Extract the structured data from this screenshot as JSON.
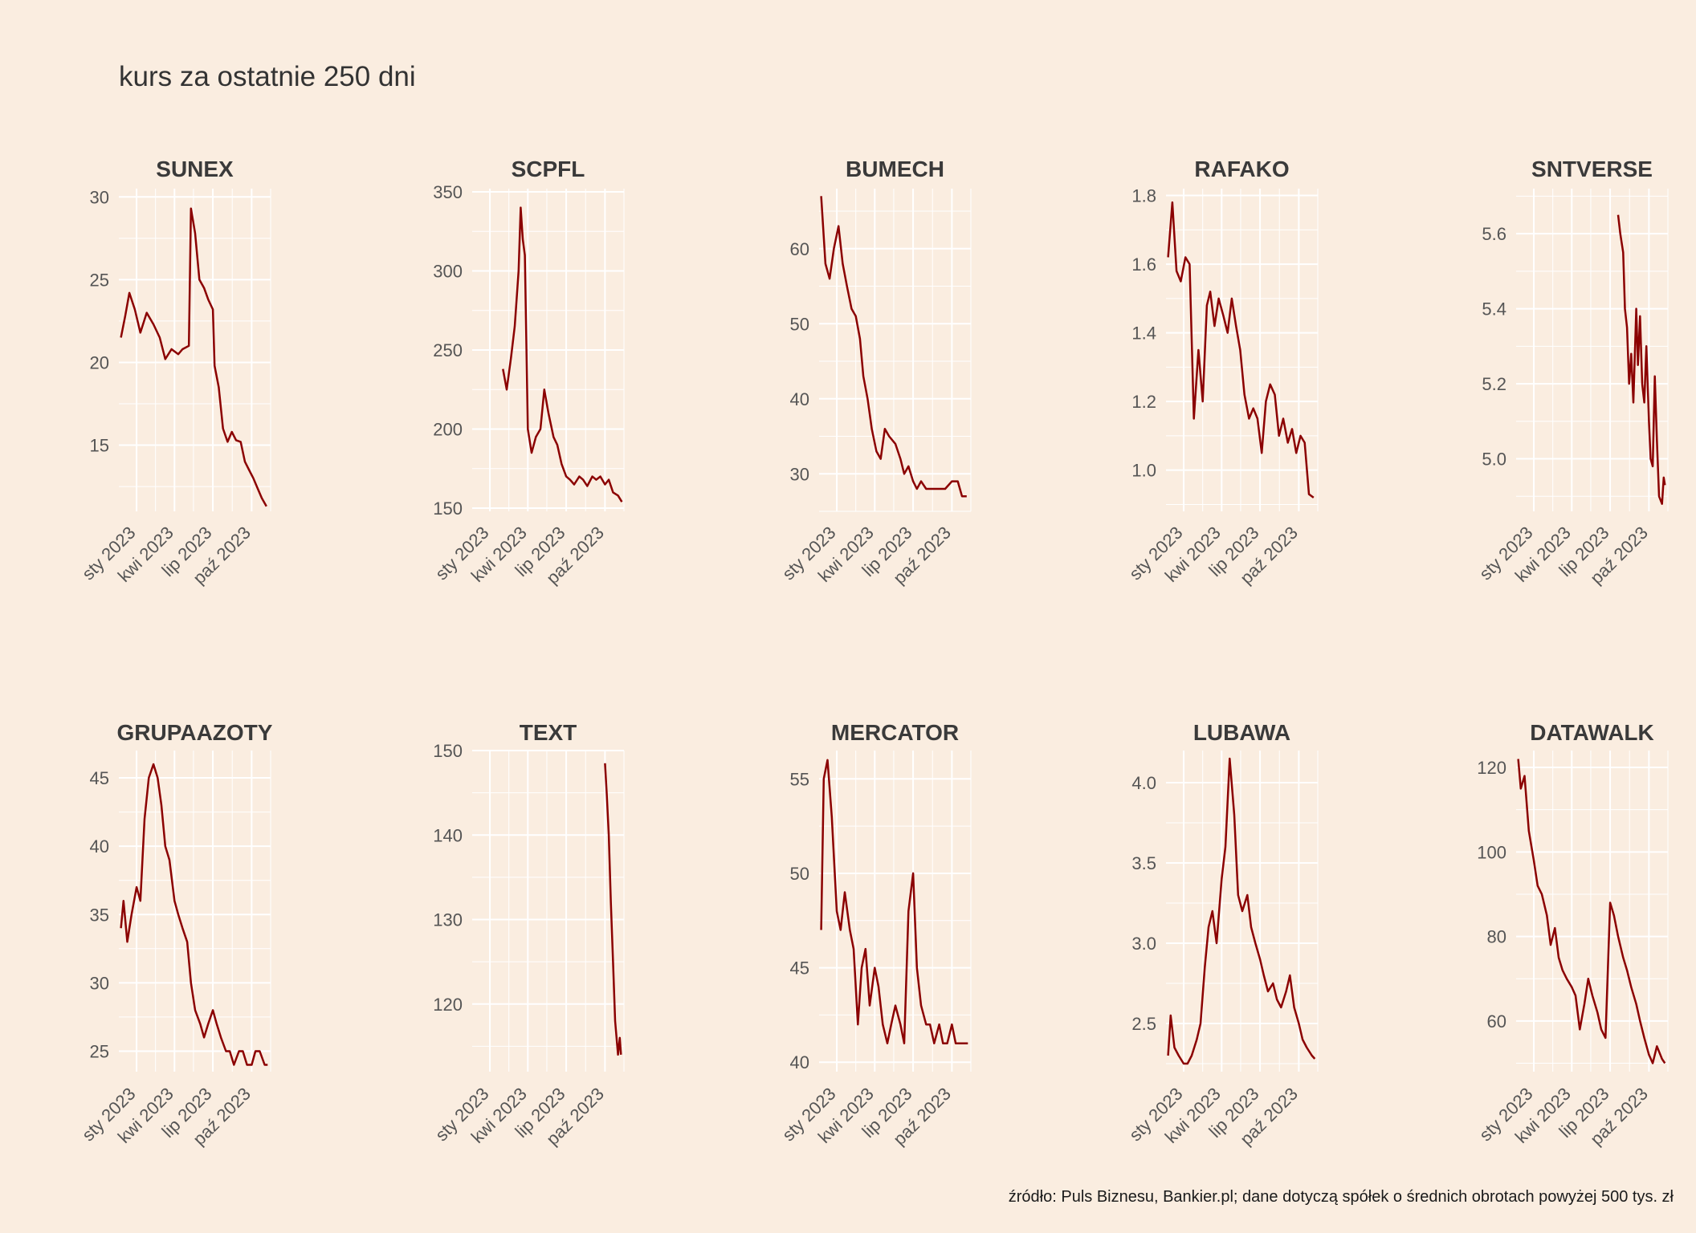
{
  "title": "kurs za ostatnie 250 dni",
  "source": "źródło: Puls Biznesu, Bankier.pl; dane dotyczą spółek o średnich obrotach powyżej 500 tys. zł",
  "colors": {
    "background": "#faede0",
    "grid": "#ffffff",
    "line": "#8b0000",
    "text": "#3a3a3a"
  },
  "chart_data": [
    {
      "type": "line",
      "title": "SUNEX",
      "xlabels": [
        "sty 2023",
        "kwi 2023",
        "lip 2023",
        "paź 2023"
      ],
      "ylim": [
        11,
        30.5
      ],
      "yticks": [
        15,
        20,
        25,
        30
      ],
      "x": [
        "2022-11-25",
        "2022-12-05",
        "2022-12-15",
        "2022-12-28",
        "2023-01-10",
        "2023-01-25",
        "2023-02-10",
        "2023-02-25",
        "2023-03-10",
        "2023-03-25",
        "2023-04-10",
        "2023-04-20",
        "2023-05-05",
        "2023-05-10",
        "2023-05-20",
        "2023-05-30",
        "2023-06-10",
        "2023-06-20",
        "2023-07-01",
        "2023-07-05",
        "2023-07-15",
        "2023-07-25",
        "2023-08-05",
        "2023-08-15",
        "2023-08-25",
        "2023-09-05",
        "2023-09-15",
        "2023-09-25",
        "2023-10-05",
        "2023-10-15",
        "2023-10-25",
        "2023-11-05"
      ],
      "values": [
        21.5,
        22.8,
        24.2,
        23.2,
        21.8,
        23.0,
        22.3,
        21.5,
        20.2,
        20.8,
        20.5,
        20.8,
        21.0,
        29.3,
        27.8,
        25.0,
        24.5,
        23.8,
        23.2,
        19.8,
        18.5,
        16.0,
        15.2,
        15.8,
        15.3,
        15.2,
        14.0,
        13.5,
        13.0,
        12.4,
        11.8,
        11.3
      ]
    },
    {
      "type": "line",
      "title": "SCPFL",
      "xlabels": [
        "sty 2023",
        "kwi 2023",
        "lip 2023",
        "paź 2023"
      ],
      "ylim": [
        148,
        352
      ],
      "yticks": [
        150,
        200,
        250,
        300,
        350
      ],
      "x": [
        "2023-02-01",
        "2023-02-10",
        "2023-02-20",
        "2023-03-01",
        "2023-03-10",
        "2023-03-15",
        "2023-03-20",
        "2023-03-25",
        "2023-04-01",
        "2023-04-10",
        "2023-04-20",
        "2023-05-01",
        "2023-05-10",
        "2023-05-20",
        "2023-06-01",
        "2023-06-10",
        "2023-06-20",
        "2023-07-01",
        "2023-07-10",
        "2023-07-20",
        "2023-08-01",
        "2023-08-10",
        "2023-08-20",
        "2023-09-01",
        "2023-09-10",
        "2023-09-20",
        "2023-10-01",
        "2023-10-10",
        "2023-10-20",
        "2023-11-01",
        "2023-11-10"
      ],
      "values": [
        238,
        225,
        245,
        265,
        300,
        340,
        320,
        310,
        200,
        185,
        195,
        200,
        225,
        210,
        195,
        190,
        178,
        170,
        168,
        165,
        170,
        168,
        164,
        170,
        168,
        170,
        165,
        168,
        160,
        158,
        154
      ]
    },
    {
      "type": "line",
      "title": "BUMECH",
      "xlabels": [
        "sty 2023",
        "kwi 2023",
        "lip 2023",
        "paź 2023"
      ],
      "ylim": [
        25,
        68
      ],
      "yticks": [
        30,
        40,
        50,
        60
      ],
      "x": [
        "2022-11-25",
        "2022-12-05",
        "2022-12-15",
        "2022-12-25",
        "2023-01-05",
        "2023-01-15",
        "2023-01-25",
        "2023-02-05",
        "2023-02-15",
        "2023-02-25",
        "2023-03-05",
        "2023-03-15",
        "2023-03-25",
        "2023-04-05",
        "2023-04-15",
        "2023-04-25",
        "2023-05-05",
        "2023-05-20",
        "2023-06-01",
        "2023-06-10",
        "2023-06-20",
        "2023-07-01",
        "2023-07-10",
        "2023-07-20",
        "2023-08-01",
        "2023-08-15",
        "2023-09-01",
        "2023-09-15",
        "2023-10-01",
        "2023-10-15",
        "2023-10-25",
        "2023-11-05"
      ],
      "values": [
        67,
        58,
        56,
        60,
        63,
        58,
        55,
        52,
        51,
        48,
        43,
        40,
        36,
        33,
        32,
        36,
        35,
        34,
        32,
        30,
        31,
        29,
        28,
        29,
        28,
        28,
        28,
        28,
        29,
        29,
        27,
        27
      ]
    },
    {
      "type": "line",
      "title": "RAFAKO",
      "xlabels": [
        "sty 2023",
        "kwi 2023",
        "lip 2023",
        "paź 2023"
      ],
      "ylim": [
        0.88,
        1.82
      ],
      "yticks": [
        1.0,
        1.2,
        1.4,
        1.6,
        1.8
      ],
      "x": [
        "2022-11-25",
        "2022-12-05",
        "2022-12-15",
        "2022-12-25",
        "2023-01-05",
        "2023-01-15",
        "2023-01-25",
        "2023-02-05",
        "2023-02-15",
        "2023-02-25",
        "2023-03-05",
        "2023-03-15",
        "2023-03-25",
        "2023-04-05",
        "2023-04-15",
        "2023-04-25",
        "2023-05-05",
        "2023-05-15",
        "2023-05-25",
        "2023-06-05",
        "2023-06-15",
        "2023-06-25",
        "2023-07-05",
        "2023-07-15",
        "2023-07-25",
        "2023-08-05",
        "2023-08-15",
        "2023-08-25",
        "2023-09-05",
        "2023-09-15",
        "2023-09-25",
        "2023-10-05",
        "2023-10-15",
        "2023-10-25",
        "2023-11-05"
      ],
      "values": [
        1.62,
        1.78,
        1.58,
        1.55,
        1.62,
        1.6,
        1.15,
        1.35,
        1.2,
        1.48,
        1.52,
        1.42,
        1.5,
        1.45,
        1.4,
        1.5,
        1.42,
        1.35,
        1.22,
        1.15,
        1.18,
        1.15,
        1.05,
        1.2,
        1.25,
        1.22,
        1.1,
        1.15,
        1.08,
        1.12,
        1.05,
        1.1,
        1.08,
        0.93,
        0.92
      ]
    },
    {
      "type": "line",
      "title": "SNTVERSE",
      "xlabels": [
        "sty 2023",
        "kwi 2023",
        "lip 2023",
        "paź 2023"
      ],
      "ylim": [
        4.86,
        5.72
      ],
      "yticks": [
        5.0,
        5.2,
        5.4,
        5.6
      ],
      "x": [
        "2023-07-20",
        "2023-07-25",
        "2023-08-01",
        "2023-08-05",
        "2023-08-10",
        "2023-08-15",
        "2023-08-20",
        "2023-08-25",
        "2023-09-01",
        "2023-09-05",
        "2023-09-10",
        "2023-09-15",
        "2023-09-20",
        "2023-09-25",
        "2023-10-01",
        "2023-10-05",
        "2023-10-10",
        "2023-10-15",
        "2023-10-20",
        "2023-10-25",
        "2023-11-01",
        "2023-11-05",
        "2023-11-08"
      ],
      "values": [
        5.65,
        5.6,
        5.55,
        5.4,
        5.35,
        5.2,
        5.28,
        5.15,
        5.4,
        5.25,
        5.38,
        5.2,
        5.15,
        5.3,
        5.1,
        5.0,
        4.98,
        5.22,
        5.05,
        4.9,
        4.88,
        4.95,
        4.93
      ]
    },
    {
      "type": "line",
      "title": "GRUPAAZOTY",
      "xlabels": [
        "sty 2023",
        "kwi 2023",
        "lip 2023",
        "paź 2023"
      ],
      "ylim": [
        23.5,
        47
      ],
      "yticks": [
        25,
        30,
        35,
        40,
        45
      ],
      "x": [
        "2022-11-25",
        "2022-12-01",
        "2022-12-10",
        "2022-12-20",
        "2023-01-01",
        "2023-01-10",
        "2023-01-20",
        "2023-01-30",
        "2023-02-10",
        "2023-02-20",
        "2023-03-01",
        "2023-03-10",
        "2023-03-20",
        "2023-04-01",
        "2023-04-10",
        "2023-04-20",
        "2023-05-01",
        "2023-05-10",
        "2023-05-20",
        "2023-06-01",
        "2023-06-10",
        "2023-06-20",
        "2023-07-01",
        "2023-07-10",
        "2023-07-20",
        "2023-08-01",
        "2023-08-10",
        "2023-08-20",
        "2023-09-01",
        "2023-09-10",
        "2023-09-20",
        "2023-10-01",
        "2023-10-10",
        "2023-10-20",
        "2023-11-01",
        "2023-11-08"
      ],
      "values": [
        34,
        36,
        33,
        35,
        37,
        36,
        42,
        45,
        46,
        45,
        43,
        40,
        39,
        36,
        35,
        34,
        33,
        30,
        28,
        27,
        26,
        27,
        28,
        27,
        26,
        25,
        25,
        24,
        25,
        25,
        24,
        24,
        25,
        25,
        24,
        24
      ]
    },
    {
      "type": "line",
      "title": "TEXT",
      "xlabels": [
        "sty 2023",
        "kwi 2023",
        "lip 2023",
        "paź 2023"
      ],
      "ylim": [
        112,
        150
      ],
      "yticks": [
        120,
        130,
        140,
        150
      ],
      "x": [
        "2023-10-01",
        "2023-10-05",
        "2023-10-10",
        "2023-10-15",
        "2023-10-20",
        "2023-10-25",
        "2023-11-01",
        "2023-11-05",
        "2023-11-08"
      ],
      "values": [
        148.5,
        145,
        140,
        132,
        125,
        118,
        114,
        116,
        114
      ]
    },
    {
      "type": "line",
      "title": "MERCATOR",
      "xlabels": [
        "sty 2023",
        "kwi 2023",
        "lip 2023",
        "paź 2023"
      ],
      "ylim": [
        39.5,
        56.5
      ],
      "yticks": [
        40,
        45,
        50,
        55
      ],
      "x": [
        "2022-11-25",
        "2022-12-01",
        "2022-12-10",
        "2022-12-20",
        "2023-01-01",
        "2023-01-10",
        "2023-01-20",
        "2023-02-01",
        "2023-02-10",
        "2023-02-20",
        "2023-03-01",
        "2023-03-10",
        "2023-03-20",
        "2023-04-01",
        "2023-04-10",
        "2023-04-20",
        "2023-05-01",
        "2023-05-10",
        "2023-05-20",
        "2023-06-01",
        "2023-06-10",
        "2023-06-20",
        "2023-07-01",
        "2023-07-10",
        "2023-07-20",
        "2023-08-01",
        "2023-08-10",
        "2023-08-20",
        "2023-09-01",
        "2023-09-10",
        "2023-09-20",
        "2023-10-01",
        "2023-10-10",
        "2023-10-20",
        "2023-11-01",
        "2023-11-08"
      ],
      "values": [
        47,
        55,
        56,
        53,
        48,
        47,
        49,
        47,
        46,
        42,
        45,
        46,
        43,
        45,
        44,
        42,
        41,
        42,
        43,
        42,
        41,
        48,
        50,
        45,
        43,
        42,
        42,
        41,
        42,
        41,
        41,
        42,
        41,
        41,
        41,
        41
      ]
    },
    {
      "type": "line",
      "title": "LUBAWA",
      "xlabels": [
        "sty 2023",
        "kwi 2023",
        "lip 2023",
        "paź 2023"
      ],
      "ylim": [
        2.2,
        4.2
      ],
      "yticks": [
        2.5,
        3.0,
        3.5,
        4.0
      ],
      "x": [
        "2022-11-25",
        "2022-12-01",
        "2022-12-10",
        "2022-12-20",
        "2023-01-01",
        "2023-01-10",
        "2023-01-20",
        "2023-02-01",
        "2023-02-10",
        "2023-02-20",
        "2023-03-01",
        "2023-03-10",
        "2023-03-20",
        "2023-04-01",
        "2023-04-10",
        "2023-04-20",
        "2023-05-01",
        "2023-05-10",
        "2023-05-20",
        "2023-06-01",
        "2023-06-10",
        "2023-06-20",
        "2023-07-01",
        "2023-07-10",
        "2023-07-20",
        "2023-08-01",
        "2023-08-10",
        "2023-08-20",
        "2023-09-01",
        "2023-09-10",
        "2023-09-20",
        "2023-10-01",
        "2023-10-10",
        "2023-10-20",
        "2023-11-01",
        "2023-11-08"
      ],
      "values": [
        2.3,
        2.55,
        2.35,
        2.3,
        2.25,
        2.25,
        2.3,
        2.4,
        2.5,
        2.85,
        3.1,
        3.2,
        3.0,
        3.4,
        3.6,
        4.15,
        3.8,
        3.3,
        3.2,
        3.3,
        3.1,
        3.0,
        2.9,
        2.8,
        2.7,
        2.75,
        2.65,
        2.6,
        2.7,
        2.8,
        2.6,
        2.5,
        2.4,
        2.35,
        2.3,
        2.28
      ]
    },
    {
      "type": "line",
      "title": "DATAWALK",
      "xlabels": [
        "sty 2023",
        "kwi 2023",
        "lip 2023",
        "paź 2023"
      ],
      "ylim": [
        48,
        124
      ],
      "yticks": [
        60,
        80,
        100,
        120
      ],
      "x": [
        "2022-11-25",
        "2022-12-01",
        "2022-12-10",
        "2022-12-20",
        "2023-01-01",
        "2023-01-10",
        "2023-01-20",
        "2023-02-01",
        "2023-02-10",
        "2023-02-20",
        "2023-03-01",
        "2023-03-10",
        "2023-03-20",
        "2023-04-01",
        "2023-04-10",
        "2023-04-20",
        "2023-05-01",
        "2023-05-10",
        "2023-05-20",
        "2023-06-01",
        "2023-06-10",
        "2023-06-20",
        "2023-07-01",
        "2023-07-10",
        "2023-07-20",
        "2023-08-01",
        "2023-08-10",
        "2023-08-20",
        "2023-09-01",
        "2023-09-10",
        "2023-09-20",
        "2023-10-01",
        "2023-10-10",
        "2023-10-20",
        "2023-11-01",
        "2023-11-08"
      ],
      "values": [
        122,
        115,
        118,
        105,
        98,
        92,
        90,
        85,
        78,
        82,
        75,
        72,
        70,
        68,
        66,
        58,
        64,
        70,
        66,
        62,
        58,
        56,
        88,
        85,
        80,
        75,
        72,
        68,
        64,
        60,
        56,
        52,
        50,
        54,
        51,
        50
      ]
    }
  ]
}
